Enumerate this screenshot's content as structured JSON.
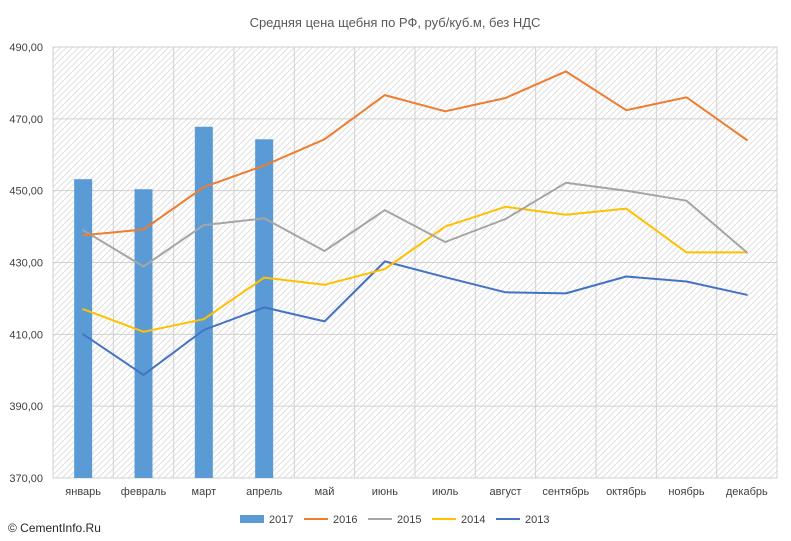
{
  "chart_data": {
    "type": "bar+line",
    "title": "Средняя цена щебня по РФ, руб/куб.м, без НДС",
    "categories": [
      "январь",
      "февраль",
      "март",
      "апрель",
      "май",
      "июнь",
      "июль",
      "август",
      "сентябрь",
      "октябрь",
      "ноябрь",
      "декабрь"
    ],
    "ylim": [
      370,
      490
    ],
    "yticks": [
      "370,00",
      "390,00",
      "410,00",
      "430,00",
      "450,00",
      "470,00",
      "490,00"
    ],
    "grid": true,
    "legend_position": "bottom",
    "series": [
      {
        "name": "2017",
        "kind": "bar",
        "color": "#5b9bd5",
        "values": [
          453.2,
          450.4,
          467.8,
          464.3,
          null,
          null,
          null,
          null,
          null,
          null,
          null,
          null
        ]
      },
      {
        "name": "2016",
        "kind": "line",
        "color": "#ed7d31",
        "values": [
          437.6,
          439.2,
          451.0,
          457.0,
          464.3,
          476.6,
          472.1,
          475.8,
          483.2,
          472.4,
          476.0,
          464.1
        ]
      },
      {
        "name": "2015",
        "kind": "line",
        "color": "#a5a5a5",
        "values": [
          439.0,
          428.9,
          440.4,
          442.3,
          433.2,
          444.6,
          435.7,
          442.1,
          452.2,
          450.0,
          447.2,
          432.8
        ]
      },
      {
        "name": "2014",
        "kind": "line",
        "color": "#ffc000",
        "values": [
          417.0,
          410.7,
          414.2,
          425.8,
          423.8,
          428.2,
          440.0,
          445.5,
          443.3,
          445.0,
          432.8,
          432.8
        ]
      },
      {
        "name": "2013",
        "kind": "line",
        "color": "#4472c4",
        "values": [
          410.0,
          398.7,
          411.2,
          417.5,
          413.6,
          430.3,
          425.9,
          421.7,
          421.4,
          426.1,
          424.7,
          421.0
        ]
      }
    ]
  },
  "footer": {
    "copyright": "© CementInfo.Ru"
  }
}
